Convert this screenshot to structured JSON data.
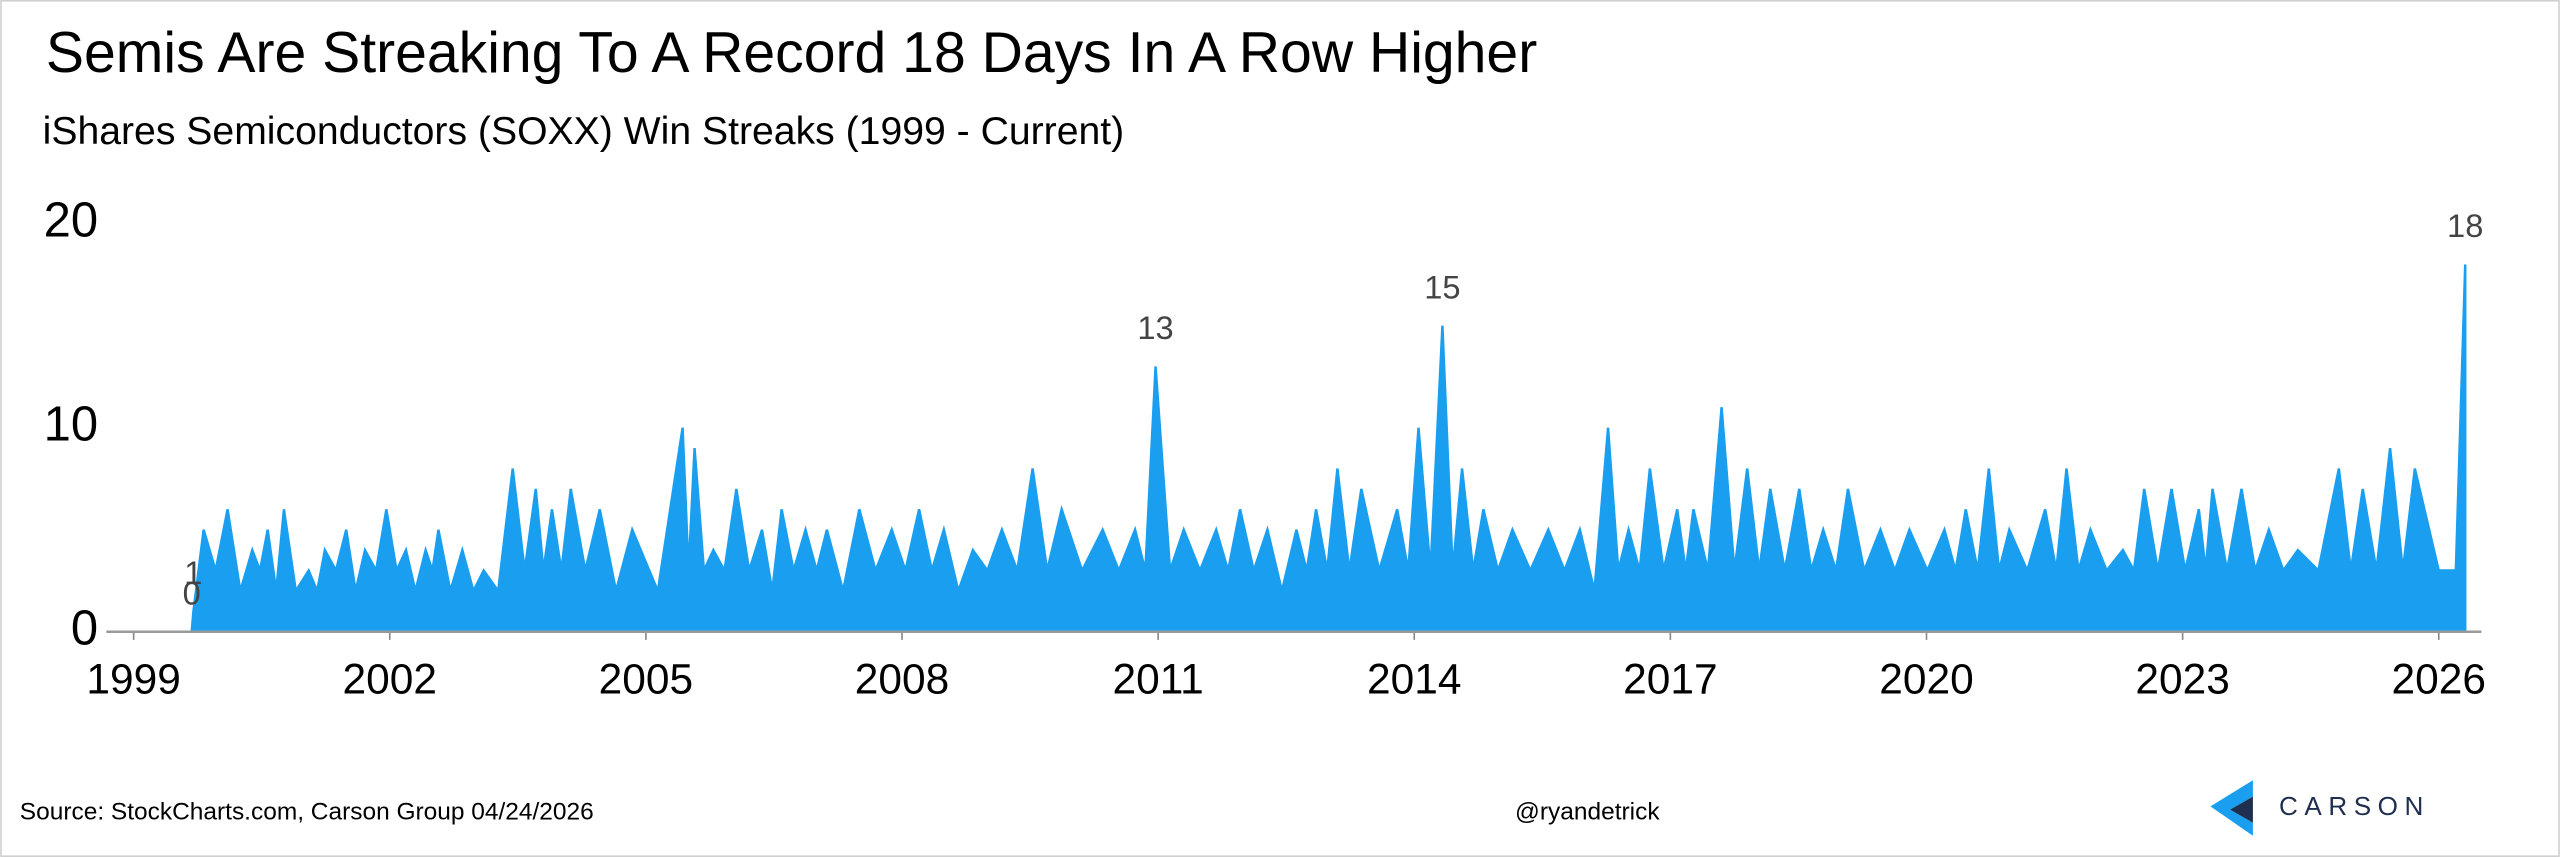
{
  "chart_data": {
    "type": "area",
    "title": "Semis Are Streaking To A Record 18 Days In A Row Higher",
    "subtitle": "iShares Semiconductors (SOXX) Win Streaks (1999 - Current)",
    "color": "#1a9ff0",
    "xlim": [
      1998.68,
      2026.5
    ],
    "xticks": [
      1999,
      2002,
      2005,
      2008,
      2011,
      2014,
      2017,
      2020,
      2023,
      2026
    ],
    "ylim": [
      0,
      20
    ],
    "yticks": [
      0,
      10,
      20
    ],
    "labeled_points": [
      0,
      1,
      81,
      103,
      180
    ],
    "x": [
      1999.68,
      1999.7,
      1999.76,
      1999.82,
      1999.96,
      2000.1,
      2000.25,
      2000.39,
      2000.48,
      2000.57,
      2000.67,
      2000.76,
      2000.9,
      2001.05,
      2001.15,
      2001.24,
      2001.37,
      2001.49,
      2001.6,
      2001.71,
      2001.84,
      2001.96,
      2002.08,
      2002.19,
      2002.3,
      2002.42,
      2002.5,
      2002.57,
      2002.71,
      2002.85,
      2002.98,
      2003.1,
      2003.27,
      2003.44,
      2003.58,
      2003.71,
      2003.8,
      2003.9,
      2004.01,
      2004.12,
      2004.29,
      2004.46,
      2004.65,
      2004.84,
      2005.14,
      2005.43,
      2005.5,
      2005.57,
      2005.68,
      2005.79,
      2005.92,
      2006.06,
      2006.21,
      2006.36,
      2006.48,
      2006.59,
      2006.73,
      2006.87,
      2007.0,
      2007.12,
      2007.31,
      2007.5,
      2007.69,
      2007.88,
      2008.04,
      2008.2,
      2008.35,
      2008.49,
      2008.66,
      2008.83,
      2009.0,
      2009.17,
      2009.35,
      2009.53,
      2009.7,
      2009.87,
      2010.11,
      2010.35,
      2010.54,
      2010.73,
      2010.85,
      2010.97,
      2011.14,
      2011.3,
      2011.49,
      2011.68,
      2011.82,
      2011.96,
      2012.12,
      2012.28,
      2012.45,
      2012.62,
      2012.74,
      2012.85,
      2012.98,
      2013.1,
      2013.24,
      2013.38,
      2013.59,
      2013.8,
      2013.93,
      2014.05,
      2014.19,
      2014.33,
      2014.45,
      2014.56,
      2014.69,
      2014.81,
      2014.98,
      2015.15,
      2015.36,
      2015.57,
      2015.76,
      2015.94,
      2016.11,
      2016.27,
      2016.39,
      2016.51,
      2016.64,
      2016.76,
      2016.92,
      2017.08,
      2017.18,
      2017.27,
      2017.44,
      2017.6,
      2017.75,
      2017.9,
      2018.04,
      2018.17,
      2018.34,
      2018.51,
      2018.65,
      2018.79,
      2018.94,
      2019.08,
      2019.27,
      2019.46,
      2019.63,
      2019.8,
      2020.01,
      2020.21,
      2020.34,
      2020.46,
      2020.6,
      2020.73,
      2020.85,
      2020.97,
      2021.18,
      2021.39,
      2021.52,
      2021.64,
      2021.78,
      2021.92,
      2022.11,
      2022.3,
      2022.43,
      2022.55,
      2022.71,
      2022.87,
      2023.03,
      2023.19,
      2023.27,
      2023.35,
      2023.52,
      2023.69,
      2023.85,
      2024.01,
      2024.18,
      2024.35,
      2024.59,
      2024.83,
      2024.97,
      2025.11,
      2025.27,
      2025.43,
      2025.58,
      2025.72,
      2026.0,
      2026.2,
      2026.31
    ],
    "values": [
      0,
      1,
      3,
      5,
      3,
      6,
      2,
      4,
      3,
      5,
      2,
      6,
      2,
      3,
      2,
      4,
      3,
      5,
      2,
      4,
      3,
      6,
      3,
      4,
      2,
      4,
      3,
      5,
      2,
      4,
      2,
      3,
      2,
      8,
      3,
      7,
      3,
      6,
      3,
      7,
      3,
      6,
      2,
      5,
      2,
      10,
      3,
      9,
      3,
      4,
      3,
      7,
      3,
      5,
      2,
      6,
      3,
      5,
      3,
      5,
      2,
      6,
      3,
      5,
      3,
      6,
      3,
      5,
      2,
      4,
      3,
      5,
      3,
      8,
      3,
      6,
      3,
      5,
      3,
      5,
      3,
      13,
      3,
      5,
      3,
      5,
      3,
      6,
      3,
      5,
      2,
      5,
      3,
      6,
      3,
      8,
      3,
      7,
      3,
      6,
      3,
      10,
      3,
      15,
      3,
      8,
      3,
      6,
      3,
      5,
      3,
      5,
      3,
      5,
      2,
      10,
      3,
      5,
      3,
      8,
      3,
      6,
      3,
      6,
      3,
      11,
      3,
      8,
      3,
      7,
      3,
      7,
      3,
      5,
      3,
      7,
      3,
      5,
      3,
      5,
      3,
      5,
      3,
      6,
      3,
      8,
      3,
      5,
      3,
      6,
      3,
      8,
      3,
      5,
      3,
      4,
      3,
      7,
      3,
      7,
      3,
      6,
      3,
      7,
      3,
      7,
      3,
      5,
      3,
      4,
      3,
      8,
      3,
      7,
      3,
      9,
      3,
      8,
      3,
      3,
      18
    ]
  },
  "footer": {
    "source": "Source: StockCharts.com, Carson Group 04/24/2026",
    "handle": "@ryandetrick",
    "logo": "CARSON"
  }
}
